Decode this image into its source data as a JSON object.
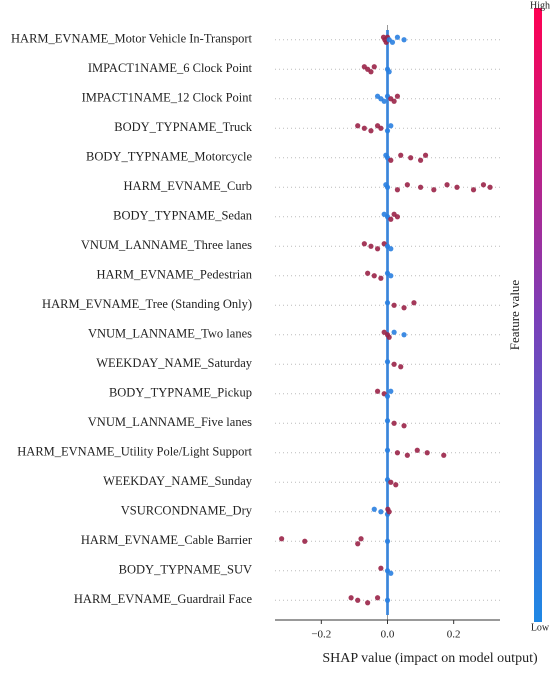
{
  "chart_data": {
    "type": "beeswarm",
    "xlabel": "SHAP value (impact on model output)",
    "xlim": [
      -0.34,
      0.34
    ],
    "xticks": [
      {
        "value": -0.2,
        "label": "−0.2"
      },
      {
        "value": 0,
        "label": "0.0"
      },
      {
        "value": 0.2,
        "label": "0.2"
      }
    ],
    "colorbar": {
      "label": "Feature value",
      "high": "High",
      "low": "Low",
      "colors": [
        "#1e88e5",
        "#7c3fb8",
        "#ff0052"
      ]
    },
    "point_colors": {
      "low": "#2a7fe0",
      "high": "#9a2448"
    },
    "features": [
      {
        "name": "HARM_EVNAME_Motor Vehicle In-Transport",
        "values": [
          -0.012,
          -0.008,
          -0.004,
          0,
          0.005,
          0.015,
          0.03,
          0.05
        ],
        "feature_values": [
          1,
          1,
          1,
          1,
          0,
          0,
          0,
          0
        ]
      },
      {
        "name": "IMPACT1NAME_6 Clock Point",
        "values": [
          -0.07,
          -0.06,
          -0.05,
          -0.04,
          0,
          0.005
        ],
        "feature_values": [
          1,
          1,
          1,
          1,
          0,
          0
        ]
      },
      {
        "name": "IMPACT1NAME_12 Clock Point",
        "values": [
          -0.03,
          -0.02,
          -0.01,
          0,
          0.01,
          0.02,
          0.03
        ],
        "feature_values": [
          0,
          0,
          0,
          0,
          1,
          1,
          1
        ]
      },
      {
        "name": "BODY_TYPNAME_Truck",
        "values": [
          -0.09,
          -0.07,
          -0.05,
          -0.03,
          -0.02,
          0,
          0.01
        ],
        "feature_values": [
          1,
          1,
          1,
          1,
          1,
          0,
          0
        ]
      },
      {
        "name": "BODY_TYPNAME_Motorcycle",
        "values": [
          -0.005,
          0,
          0.01,
          0.04,
          0.07,
          0.1,
          0.115
        ],
        "feature_values": [
          0,
          0,
          1,
          1,
          1,
          1,
          1
        ]
      },
      {
        "name": "HARM_EVNAME_Curb",
        "values": [
          -0.005,
          0,
          0.03,
          0.06,
          0.1,
          0.14,
          0.18,
          0.21,
          0.26,
          0.29,
          0.31
        ],
        "feature_values": [
          0,
          0,
          1,
          1,
          1,
          1,
          1,
          1,
          1,
          1,
          1
        ]
      },
      {
        "name": "BODY_TYPNAME_Sedan",
        "values": [
          -0.01,
          0,
          0.01,
          0.02,
          0.03
        ],
        "feature_values": [
          0,
          0,
          1,
          1,
          1
        ]
      },
      {
        "name": "VNUM_LANNAME_Three lanes",
        "values": [
          -0.07,
          -0.05,
          -0.03,
          -0.01,
          0,
          0.01
        ],
        "feature_values": [
          1,
          1,
          1,
          1,
          0,
          0
        ]
      },
      {
        "name": "HARM_EVNAME_Pedestrian",
        "values": [
          -0.06,
          -0.04,
          -0.02,
          0,
          0.01
        ],
        "feature_values": [
          1,
          1,
          1,
          0,
          0
        ]
      },
      {
        "name": "HARM_EVNAME_Tree (Standing Only)",
        "values": [
          0,
          0.02,
          0.05,
          0.08
        ],
        "feature_values": [
          0,
          1,
          1,
          1
        ]
      },
      {
        "name": "VNUM_LANNAME_Two lanes",
        "values": [
          -0.01,
          0,
          0.005,
          0.02,
          0.05
        ],
        "feature_values": [
          1,
          1,
          1,
          0,
          0
        ]
      },
      {
        "name": "WEEKDAY_NAME_Saturday",
        "values": [
          0,
          0.02,
          0.04
        ],
        "feature_values": [
          0,
          1,
          1
        ]
      },
      {
        "name": "BODY_TYPNAME_Pickup",
        "values": [
          -0.03,
          -0.01,
          0,
          0.01
        ],
        "feature_values": [
          1,
          1,
          0,
          0
        ]
      },
      {
        "name": "VNUM_LANNAME_Five lanes",
        "values": [
          0,
          0.02,
          0.05
        ],
        "feature_values": [
          0,
          1,
          1
        ]
      },
      {
        "name": "HARM_EVNAME_Utility Pole/Light Support",
        "values": [
          0,
          0.03,
          0.06,
          0.09,
          0.12,
          0.17
        ],
        "feature_values": [
          0,
          1,
          1,
          1,
          1,
          1
        ]
      },
      {
        "name": "WEEKDAY_NAME_Sunday",
        "values": [
          0,
          0.01,
          0.025
        ],
        "feature_values": [
          0,
          1,
          1
        ]
      },
      {
        "name": "VSURCONDNAME_Dry",
        "values": [
          -0.04,
          -0.02,
          0,
          0.001,
          0.005
        ],
        "feature_values": [
          0,
          0,
          0,
          1,
          1
        ]
      },
      {
        "name": "HARM_EVNAME_Cable Barrier",
        "values": [
          -0.32,
          -0.25,
          -0.09,
          -0.08,
          0
        ],
        "feature_values": [
          1,
          1,
          1,
          1,
          0
        ]
      },
      {
        "name": "BODY_TYPNAME_SUV",
        "values": [
          -0.02,
          0,
          0.01
        ],
        "feature_values": [
          1,
          0,
          0
        ]
      },
      {
        "name": "HARM_EVNAME_Guardrail Face",
        "values": [
          -0.11,
          -0.09,
          -0.06,
          -0.03,
          0
        ],
        "feature_values": [
          1,
          1,
          1,
          1,
          0
        ]
      }
    ]
  }
}
